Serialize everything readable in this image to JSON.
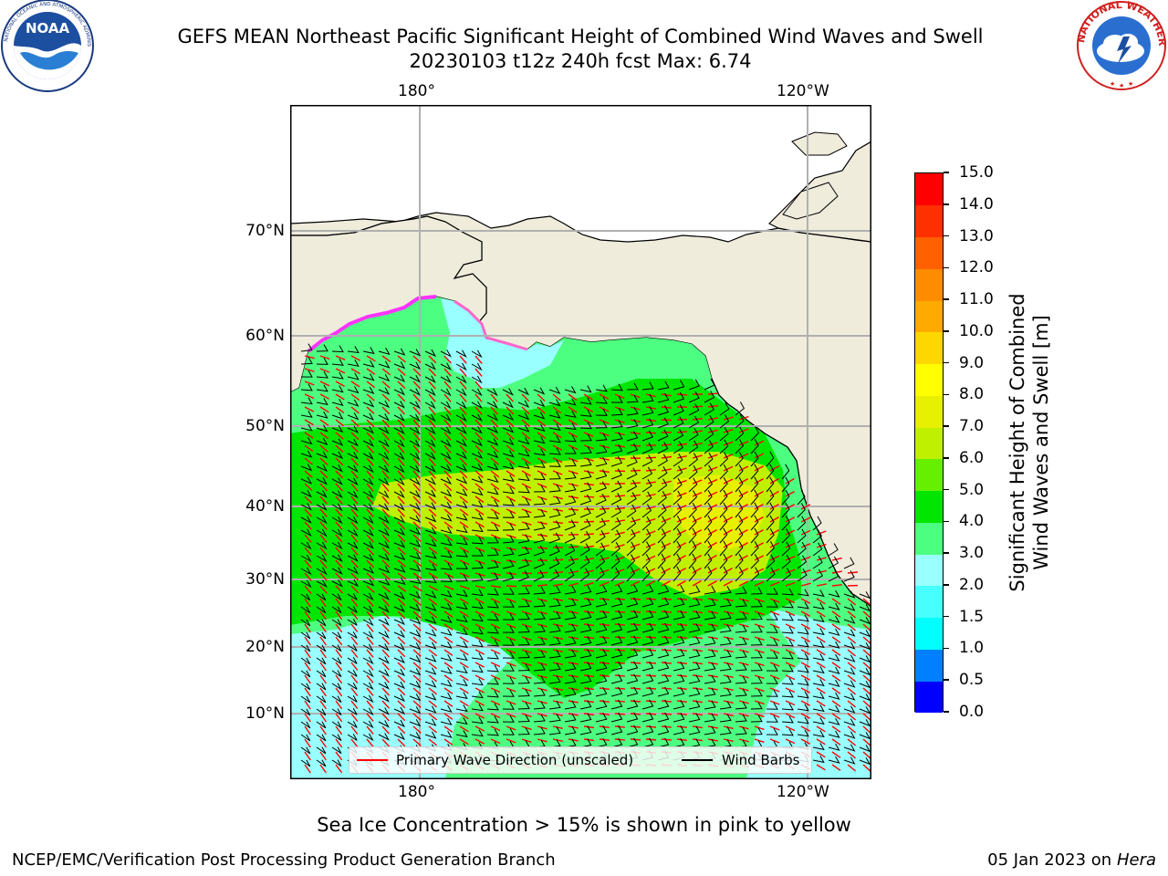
{
  "title": {
    "line1": "GEFS MEAN Northeast Pacific Significant Height of Combined Wind Waves and Swell",
    "line2": "20230103 t12z 240h fcst   Max: 6.74"
  },
  "logos": {
    "left": {
      "name": "noaa-logo",
      "text": "NOAA",
      "ring_text": "NATIONAL OCEANIC AND ATMOSPHERIC ADMINISTRATION · U.S. DEPARTMENT OF COMMERCE"
    },
    "right": {
      "name": "nws-logo",
      "ring_text": "NATIONAL WEATHER SERVICE"
    }
  },
  "map": {
    "lon_labels": [
      "180°",
      "120°W"
    ],
    "lat_labels": [
      "70°N",
      "60°N",
      "50°N",
      "40°N",
      "30°N",
      "20°N",
      "10°N"
    ],
    "colors": {
      "land": "#efecdc",
      "ocean_low": "#99ffff",
      "grid": "#b0b0b0"
    }
  },
  "legend": {
    "wave_direction": "Primary Wave Direction (unscaled)",
    "wind_barbs": "Wind Barbs",
    "wave_color": "#ff0000",
    "barb_color": "#000000"
  },
  "colorbar": {
    "label": "Significant Height of Combined\nWind Waves and Swell [m]",
    "ticks": [
      "0.0",
      "0.5",
      "1.0",
      "1.5",
      "2.0",
      "3.0",
      "4.0",
      "5.0",
      "6.0",
      "7.0",
      "8.0",
      "9.0",
      "10.0",
      "11.0",
      "12.0",
      "13.0",
      "14.0",
      "15.0"
    ],
    "colors": [
      "#0000ff",
      "#0080ff",
      "#00ffff",
      "#47ffff",
      "#99ffff",
      "#4dff80",
      "#00e600",
      "#66f000",
      "#bff000",
      "#e6f000",
      "#ffff00",
      "#ffd700",
      "#ffaa00",
      "#ff8c00",
      "#ff6000",
      "#ff3000",
      "#ff0000"
    ]
  },
  "note": "Sea Ice Concentration > 15% is shown in pink to yellow",
  "footer": {
    "left": "NCEP/EMC/Verification Post Processing Product Generation Branch",
    "date": "05 Jan 2023 on",
    "host": "Hera"
  }
}
